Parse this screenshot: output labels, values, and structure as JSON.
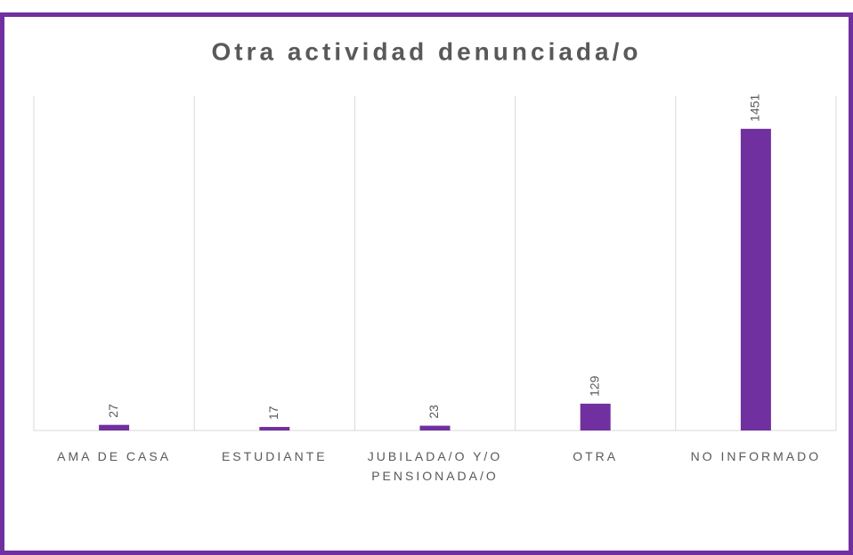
{
  "chart_data": {
    "type": "bar",
    "title": "Otra actividad denunciada/o",
    "categories": [
      "AMA DE CASA",
      "ESTUDIANTE",
      "JUBILADA/O Y/O PENSIONADA/O",
      "OTRA",
      "NO INFORMADO"
    ],
    "values": [
      27,
      17,
      23,
      129,
      1451
    ],
    "color": "#7030a0",
    "ylim": [
      0,
      1600
    ],
    "grid": true
  }
}
